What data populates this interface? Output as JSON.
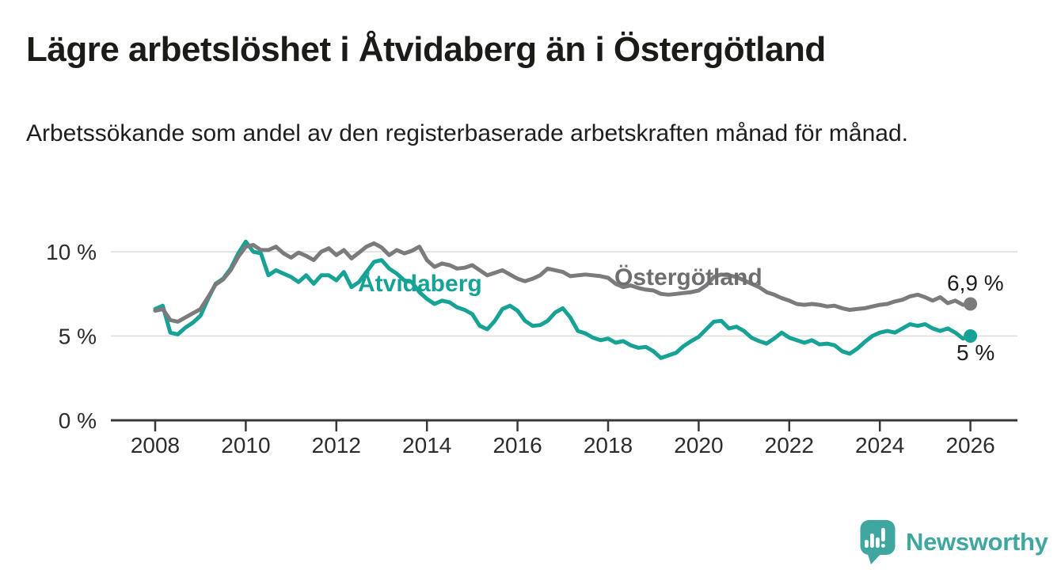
{
  "chart_data": {
    "type": "line",
    "title": "Lägre arbetslöshet i Åtvidaberg än i Östergötland",
    "subtitle": "Arbetssökande som andel av den registerbaserade arbetskraften månad för månad.",
    "xlabel": "",
    "ylabel": "",
    "x_unit": "year",
    "x_start": 2008,
    "x_step_years": 0.1666667,
    "x_end": 2026.0,
    "x_ticks": [
      2008,
      2010,
      2012,
      2014,
      2016,
      2018,
      2020,
      2022,
      2024,
      2026
    ],
    "y_ticks": [
      {
        "value": 0,
        "label": "0 %"
      },
      {
        "value": 5,
        "label": "5 %"
      },
      {
        "value": 10,
        "label": "10 %"
      }
    ],
    "ylim": [
      0,
      11.7
    ],
    "grid": "horizontal",
    "legend_position": "inline-labels-on-lines",
    "series": [
      {
        "name": "Åtvidaberg",
        "color": "#16a295",
        "label_color": "#16a295",
        "end_label": "5 %",
        "end_value": 5.0,
        "values": [
          6.6,
          6.8,
          5.2,
          5.1,
          5.5,
          5.8,
          6.2,
          7.2,
          8.1,
          8.4,
          9.0,
          9.9,
          10.6,
          10.0,
          9.9,
          8.6,
          8.9,
          8.7,
          8.5,
          8.2,
          8.6,
          8.1,
          8.6,
          8.6,
          8.3,
          8.8,
          7.9,
          8.2,
          8.8,
          9.4,
          9.5,
          9.0,
          8.7,
          8.3,
          8.2,
          7.6,
          7.2,
          6.9,
          7.1,
          7.0,
          6.7,
          6.55,
          6.3,
          5.6,
          5.4,
          5.9,
          6.6,
          6.8,
          6.5,
          5.9,
          5.6,
          5.65,
          5.9,
          6.4,
          6.65,
          6.1,
          5.3,
          5.15,
          4.9,
          4.75,
          4.85,
          4.6,
          4.7,
          4.45,
          4.3,
          4.35,
          4.1,
          3.7,
          3.85,
          4.0,
          4.4,
          4.7,
          4.95,
          5.4,
          5.85,
          5.9,
          5.45,
          5.55,
          5.3,
          4.9,
          4.7,
          4.55,
          4.85,
          5.2,
          4.9,
          4.75,
          4.6,
          4.75,
          4.5,
          4.55,
          4.45,
          4.1,
          3.95,
          4.25,
          4.65,
          5.0,
          5.2,
          5.3,
          5.2,
          5.45,
          5.7,
          5.6,
          5.7,
          5.45,
          5.3,
          5.45,
          5.2,
          4.85,
          5.0
        ]
      },
      {
        "name": "Östergötland",
        "color": "#7b7b7d",
        "label_color": "#6e6e71",
        "end_label": "6,9 %",
        "end_value": 6.9,
        "values": [
          6.5,
          6.6,
          5.95,
          5.85,
          6.1,
          6.35,
          6.6,
          7.3,
          8.05,
          8.35,
          8.9,
          9.7,
          10.3,
          10.4,
          10.1,
          10.1,
          10.3,
          9.9,
          9.65,
          9.95,
          9.75,
          9.5,
          10.0,
          10.2,
          9.8,
          10.1,
          9.6,
          9.95,
          10.3,
          10.5,
          10.25,
          9.8,
          10.1,
          9.9,
          10.05,
          10.3,
          9.5,
          9.1,
          9.3,
          9.2,
          9.0,
          9.05,
          9.2,
          8.9,
          8.6,
          8.75,
          8.9,
          8.65,
          8.4,
          8.25,
          8.4,
          8.6,
          9.0,
          8.9,
          8.8,
          8.55,
          8.6,
          8.65,
          8.6,
          8.55,
          8.45,
          8.1,
          7.9,
          8.0,
          7.85,
          7.75,
          7.7,
          7.5,
          7.45,
          7.5,
          7.55,
          7.6,
          7.7,
          8.0,
          8.5,
          8.65,
          8.6,
          8.5,
          8.3,
          8.1,
          7.9,
          7.6,
          7.45,
          7.25,
          7.1,
          6.9,
          6.85,
          6.9,
          6.85,
          6.75,
          6.8,
          6.65,
          6.55,
          6.6,
          6.65,
          6.75,
          6.85,
          6.9,
          7.05,
          7.15,
          7.35,
          7.45,
          7.3,
          7.1,
          7.3,
          6.95,
          7.1,
          6.85,
          6.9
        ]
      }
    ]
  },
  "colors": {
    "accent_teal": "#16a295",
    "line_gray": "#7b7b7d",
    "grid": "#dcdcdc",
    "axis": "#38383a",
    "text": "#1d1d1b",
    "logo_teal": "#3fa79f"
  },
  "branding": {
    "logo_text": "Newsworthy",
    "logo_icon": "bar-chart-speech-bubble-icon"
  }
}
